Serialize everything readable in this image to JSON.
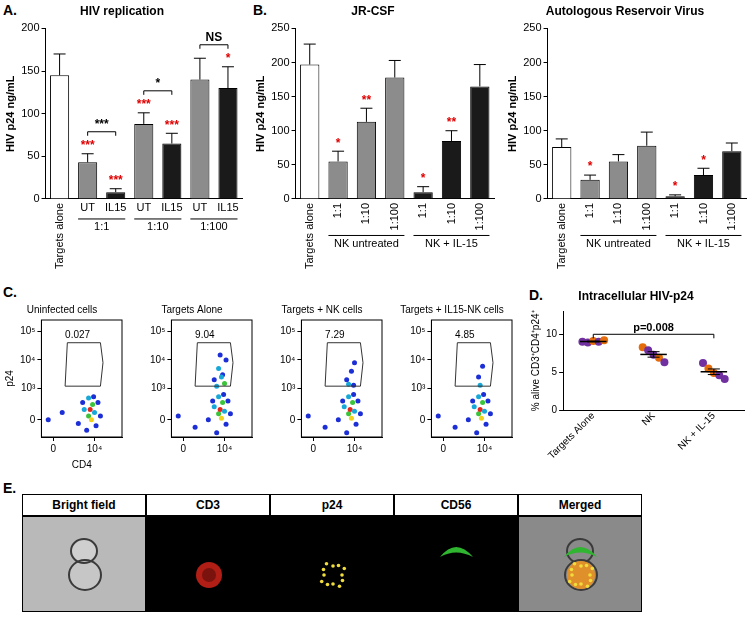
{
  "chart_data": [
    {
      "type": "bar",
      "panel_label": "A.",
      "title": "HIV replication",
      "y_label": "HIV p24 ng/mL",
      "categories": [
        "Targets alone",
        "UT",
        "IL15",
        "UT",
        "IL15",
        "UT",
        "IL15"
      ],
      "values": [
        145,
        43,
        8,
        88,
        65,
        140,
        130
      ],
      "errors": [
        25,
        10,
        4,
        13,
        12,
        25,
        25
      ],
      "colors": [
        "#ffffff",
        "#8c8c8c",
        "#1a1a1a",
        "#8c8c8c",
        "#1a1a1a",
        "#8c8c8c",
        "#1a1a1a"
      ],
      "marks": [
        null,
        "***",
        "***",
        "***",
        "***",
        null,
        "*"
      ],
      "groups": [
        {
          "label": "1:1",
          "from": 1,
          "to": 2
        },
        {
          "label": "1:10",
          "from": 3,
          "to": 4
        },
        {
          "label": "1:100",
          "from": 5,
          "to": 6
        }
      ],
      "comparisons": [
        {
          "from": 1,
          "to": 2,
          "label": "***"
        },
        {
          "from": 3,
          "to": 4,
          "label": "*"
        },
        {
          "from": 5,
          "to": 6,
          "label": "NS"
        }
      ],
      "ylim": [
        0,
        200
      ],
      "yticks": [
        0,
        50,
        100,
        150,
        200
      ],
      "grid": false
    },
    {
      "type": "bar",
      "panel_label": "B.",
      "title": "JR-CSF",
      "y_label": "HIV p24 ng/mL",
      "categories": [
        "Targets alone",
        "1:1",
        "1:10",
        "1:100",
        "1:1",
        "1:10",
        "1:100"
      ],
      "values": [
        197,
        55,
        113,
        178,
        10,
        85,
        165
      ],
      "errors": [
        30,
        15,
        20,
        25,
        8,
        15,
        32
      ],
      "colors": [
        "#ffffff",
        "#8c8c8c",
        "#8c8c8c",
        "#8c8c8c",
        "#1a1a1a",
        "#1a1a1a",
        "#1a1a1a"
      ],
      "marks": [
        null,
        "*",
        "**",
        null,
        "*",
        "**",
        null
      ],
      "groups": [
        {
          "label": "NK untreated",
          "from": 1,
          "to": 3
        },
        {
          "label": "NK + IL-15",
          "from": 4,
          "to": 6
        }
      ],
      "ylim": [
        0,
        250
      ],
      "yticks": [
        0,
        50,
        100,
        150,
        200,
        250
      ],
      "grid": false
    },
    {
      "type": "bar",
      "title": "Autologous Reservoir Virus",
      "y_label": "HIV p24 ng/mL",
      "categories": [
        "Targets alone",
        "1:1",
        "1:10",
        "1:100",
        "1:1",
        "1:10",
        "1:100"
      ],
      "values": [
        76,
        28,
        55,
        78,
        4,
        35,
        70
      ],
      "errors": [
        12,
        7,
        10,
        20,
        2,
        10,
        12
      ],
      "colors": [
        "#ffffff",
        "#8c8c8c",
        "#8c8c8c",
        "#8c8c8c",
        "#1a1a1a",
        "#1a1a1a",
        "#1a1a1a"
      ],
      "marks": [
        null,
        "*",
        null,
        null,
        "*",
        "*",
        null
      ],
      "groups": [
        {
          "label": "NK untreated",
          "from": 1,
          "to": 3
        },
        {
          "label": "NK + IL-15",
          "from": 4,
          "to": 6
        }
      ],
      "ylim": [
        0,
        250
      ],
      "yticks": [
        0,
        50,
        100,
        150,
        200,
        250
      ],
      "grid": false
    },
    {
      "type": "scatter",
      "panel_label": "C.",
      "title": "Uninfected cells",
      "x_label": "CD4",
      "y_label": "p24",
      "log": true,
      "grid": false,
      "xlim": [
        -300,
        250000
      ],
      "ylim": [
        -300,
        250000
      ],
      "xticks": [
        0,
        {
          "value": 10000,
          "label": "10⁴"
        }
      ],
      "yticks": [
        0,
        {
          "value": 1000,
          "label": "10³"
        },
        {
          "value": 10000,
          "label": "10⁴"
        },
        {
          "value": 100000,
          "label": "10⁵"
        }
      ],
      "x": [
        -100,
        200,
        1500,
        2500,
        4000,
        3000,
        5000,
        6000,
        7000,
        8000,
        10000,
        12000,
        15000,
        9000,
        5000,
        20000
      ],
      "y": [
        0,
        100,
        -50,
        300,
        -150,
        150,
        50,
        150,
        0,
        250,
        100,
        -80,
        300,
        500,
        450,
        50
      ],
      "colors": [
        "#1c2fd6",
        "#1c2fd6",
        "#1c2fd6",
        "#1c2fd6",
        "#1c2fd6",
        "#17a8d8",
        "#3bc43b",
        "#e3261b",
        "#f0d21b",
        "#3bc43b",
        "#17a8d8",
        "#1c2fd6",
        "#1c2fd6",
        "#1c2fd6",
        "#17a8d8",
        "#1c2fd6"
      ],
      "gate": {
        "x": [
          300,
          400,
          20000,
          27000,
          20000
        ],
        "y": [
          1200,
          40000,
          40000,
          8000,
          1200
        ]
      },
      "gate_percent": 0.027
    },
    {
      "type": "scatter",
      "title": "Targets Alone",
      "log": true,
      "grid": false,
      "xlim": [
        -300,
        250000
      ],
      "ylim": [
        -300,
        250000
      ],
      "xticks": [
        0,
        {
          "value": 10000,
          "label": "10⁴"
        }
      ],
      "yticks": [
        0,
        {
          "value": 1000,
          "label": "10³"
        },
        {
          "value": 10000,
          "label": "10⁴"
        },
        {
          "value": 100000,
          "label": "10⁵"
        }
      ],
      "x": [
        -100,
        300,
        1500,
        2500,
        4000,
        3000,
        5000,
        6000,
        7000,
        8000,
        10000,
        12000,
        15000,
        9000,
        5000,
        20000,
        3000,
        5000,
        8000,
        12000,
        6000,
        4000,
        10000,
        7000
      ],
      "y": [
        50,
        -100,
        0,
        350,
        -200,
        200,
        80,
        150,
        20,
        300,
        120,
        -60,
        350,
        600,
        500,
        80,
        2000,
        5000,
        3000,
        10000,
        15000,
        1200,
        1500,
        2500
      ],
      "colors": [
        "#1c2fd6",
        "#1c2fd6",
        "#1c2fd6",
        "#1c2fd6",
        "#1c2fd6",
        "#17a8d8",
        "#3bc43b",
        "#e3261b",
        "#f0d21b",
        "#3bc43b",
        "#17a8d8",
        "#1c2fd6",
        "#1c2fd6",
        "#1c2fd6",
        "#17a8d8",
        "#1c2fd6",
        "#1c2fd6",
        "#17a8d8",
        "#1c2fd6",
        "#1c2fd6",
        "#1c2fd6",
        "#17a8d8",
        "#3bc43b",
        "#17a8d8"
      ],
      "gate": {
        "x": [
          300,
          400,
          20000,
          27000,
          20000
        ],
        "y": [
          1200,
          40000,
          40000,
          8000,
          1200
        ]
      },
      "gate_percent": 9.04
    },
    {
      "type": "scatter",
      "title": "Targets + NK cells",
      "log": true,
      "grid": false,
      "xlim": [
        -300,
        250000
      ],
      "ylim": [
        -300,
        250000
      ],
      "xticks": [
        0,
        {
          "value": 10000,
          "label": "10⁴"
        }
      ],
      "yticks": [
        0,
        {
          "value": 1000,
          "label": "10³"
        },
        {
          "value": 10000,
          "label": "10⁴"
        },
        {
          "value": 100000,
          "label": "10⁵"
        }
      ],
      "x": [
        -100,
        300,
        1500,
        2500,
        4000,
        3000,
        5000,
        6000,
        7000,
        8000,
        10000,
        12000,
        15000,
        9000,
        5000,
        20000,
        4000,
        7000,
        10000,
        5000,
        9000
      ],
      "y": [
        50,
        -100,
        0,
        350,
        -200,
        200,
        80,
        150,
        20,
        300,
        120,
        -60,
        350,
        600,
        500,
        80,
        2000,
        4000,
        8000,
        1400,
        1300
      ],
      "colors": [
        "#1c2fd6",
        "#1c2fd6",
        "#1c2fd6",
        "#1c2fd6",
        "#1c2fd6",
        "#17a8d8",
        "#3bc43b",
        "#e3261b",
        "#f0d21b",
        "#3bc43b",
        "#17a8d8",
        "#1c2fd6",
        "#1c2fd6",
        "#1c2fd6",
        "#17a8d8",
        "#1c2fd6",
        "#1c2fd6",
        "#1c2fd6",
        "#1c2fd6",
        "#17a8d8",
        "#1c2fd6"
      ],
      "gate": {
        "x": [
          300,
          400,
          20000,
          27000,
          20000
        ],
        "y": [
          1200,
          40000,
          40000,
          8000,
          1200
        ]
      },
      "gate_percent": 7.29
    },
    {
      "type": "scatter",
      "title": "Targets + IL15-NK cells",
      "log": true,
      "grid": false,
      "xlim": [
        -300,
        250000
      ],
      "ylim": [
        -300,
        250000
      ],
      "xticks": [
        0,
        {
          "value": 10000,
          "label": "10⁴"
        }
      ],
      "yticks": [
        0,
        {
          "value": 1000,
          "label": "10³"
        },
        {
          "value": 10000,
          "label": "10⁴"
        },
        {
          "value": 100000,
          "label": "10⁵"
        }
      ],
      "x": [
        -100,
        300,
        1500,
        2500,
        4000,
        3000,
        5000,
        6000,
        7000,
        8000,
        10000,
        12000,
        15000,
        9000,
        5000,
        20000,
        5000,
        8000,
        6000
      ],
      "y": [
        50,
        -100,
        0,
        350,
        -200,
        200,
        80,
        150,
        20,
        300,
        120,
        -60,
        350,
        600,
        500,
        80,
        2500,
        6000,
        1300
      ],
      "colors": [
        "#1c2fd6",
        "#1c2fd6",
        "#1c2fd6",
        "#1c2fd6",
        "#1c2fd6",
        "#17a8d8",
        "#3bc43b",
        "#e3261b",
        "#f0d21b",
        "#3bc43b",
        "#17a8d8",
        "#1c2fd6",
        "#1c2fd6",
        "#1c2fd6",
        "#17a8d8",
        "#1c2fd6",
        "#1c2fd6",
        "#1c2fd6",
        "#17a8d8"
      ],
      "gate": {
        "x": [
          300,
          400,
          20000,
          27000,
          20000
        ],
        "y": [
          1200,
          40000,
          40000,
          8000,
          1200
        ]
      },
      "gate_percent": 4.85
    },
    {
      "type": "dot",
      "panel_label": "D.",
      "title": "Intracellular HIV-p24",
      "y_label": "% alive CD3⁺CD4⁺p24⁺",
      "categories": [
        "Targets Alone",
        "NK",
        "NK + IL-15"
      ],
      "values": [
        [
          9.0,
          8.9,
          9.1,
          9.0,
          9.2
        ],
        [
          8.3,
          7.9,
          7.3,
          6.9,
          6.3
        ],
        [
          6.2,
          5.5,
          4.9,
          4.6,
          4.1
        ]
      ],
      "colors": [
        [
          "#7030a0",
          "#7030a0",
          "#e46c0a",
          "#7030a0",
          "#e46c0a"
        ],
        [
          "#e46c0a",
          "#7030a0",
          "#7030a0",
          "#e46c0a",
          "#7030a0"
        ],
        [
          "#7030a0",
          "#e46c0a",
          "#e46c0a",
          "#7030a0",
          "#7030a0"
        ]
      ],
      "means": [
        9.04,
        7.34,
        5.06
      ],
      "errors": [
        0.05,
        0.36,
        0.37
      ],
      "comparisons": [
        {
          "from": 0,
          "to": 2,
          "label": "p=0.008"
        }
      ],
      "ylim": [
        0,
        13
      ],
      "yticks": [
        0,
        5,
        10
      ],
      "grid": false
    }
  ],
  "image_panel": {
    "panel_label": "E.",
    "columns": [
      "Bright field",
      "CD3",
      "p24",
      "CD56",
      "Merged"
    ]
  }
}
